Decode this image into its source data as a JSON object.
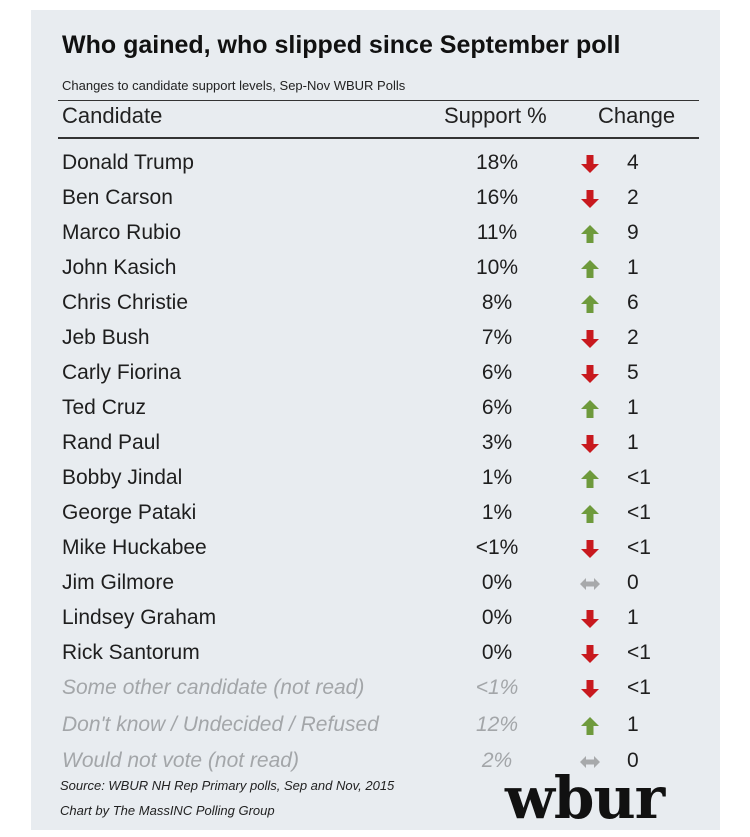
{
  "chart_data": {
    "type": "table",
    "title": "Who gained, who slipped since September poll",
    "subtitle": "Changes to candidate support levels, Sep-Nov WBUR Polls",
    "columns": [
      "Candidate",
      "Support %",
      "Change"
    ],
    "rows": [
      {
        "name": "Donald Trump",
        "support": "18%",
        "dir": "down",
        "change": "4",
        "muted": false
      },
      {
        "name": "Ben Carson",
        "support": "16%",
        "dir": "down",
        "change": "2",
        "muted": false
      },
      {
        "name": "Marco Rubio",
        "support": "11%",
        "dir": "up",
        "change": "9",
        "muted": false
      },
      {
        "name": "John Kasich",
        "support": "10%",
        "dir": "up",
        "change": "1",
        "muted": false
      },
      {
        "name": "Chris Christie",
        "support": "8%",
        "dir": "up",
        "change": "6",
        "muted": false
      },
      {
        "name": "Jeb Bush",
        "support": "7%",
        "dir": "down",
        "change": "2",
        "muted": false
      },
      {
        "name": "Carly Fiorina",
        "support": "6%",
        "dir": "down",
        "change": "5",
        "muted": false
      },
      {
        "name": "Ted Cruz",
        "support": "6%",
        "dir": "up",
        "change": "1",
        "muted": false
      },
      {
        "name": "Rand Paul",
        "support": "3%",
        "dir": "down",
        "change": "1",
        "muted": false
      },
      {
        "name": "Bobby Jindal",
        "support": "1%",
        "dir": "up",
        "change": "<1",
        "muted": false
      },
      {
        "name": "George Pataki",
        "support": "1%",
        "dir": "up",
        "change": "<1",
        "muted": false
      },
      {
        "name": "Mike Huckabee",
        "support": "<1%",
        "dir": "down",
        "change": "<1",
        "muted": false
      },
      {
        "name": "Jim Gilmore",
        "support": "0%",
        "dir": "flat",
        "change": "0",
        "muted": false
      },
      {
        "name": "Lindsey Graham",
        "support": "0%",
        "dir": "down",
        "change": "1",
        "muted": false
      },
      {
        "name": "Rick Santorum",
        "support": "0%",
        "dir": "down",
        "change": "<1",
        "muted": false
      },
      {
        "name": "Some other candidate (not read)",
        "support": "<1%",
        "dir": "down",
        "change": "<1",
        "muted": true
      },
      {
        "name": "Don't know / Undecided / Refused",
        "support": "12%",
        "dir": "up",
        "change": "1",
        "muted": true
      },
      {
        "name": "Would not vote (not read)",
        "support": "2%",
        "dir": "flat",
        "change": "0",
        "muted": true
      }
    ],
    "source": "Source: WBUR NH Rep Primary polls, Sep and Nov, 2015",
    "credit": "Chart by The MassINC Polling Group"
  },
  "logo_text": "wbur",
  "colors": {
    "up": "#6e9a3c",
    "down": "#c8191e",
    "flat": "#a7a9ab"
  }
}
